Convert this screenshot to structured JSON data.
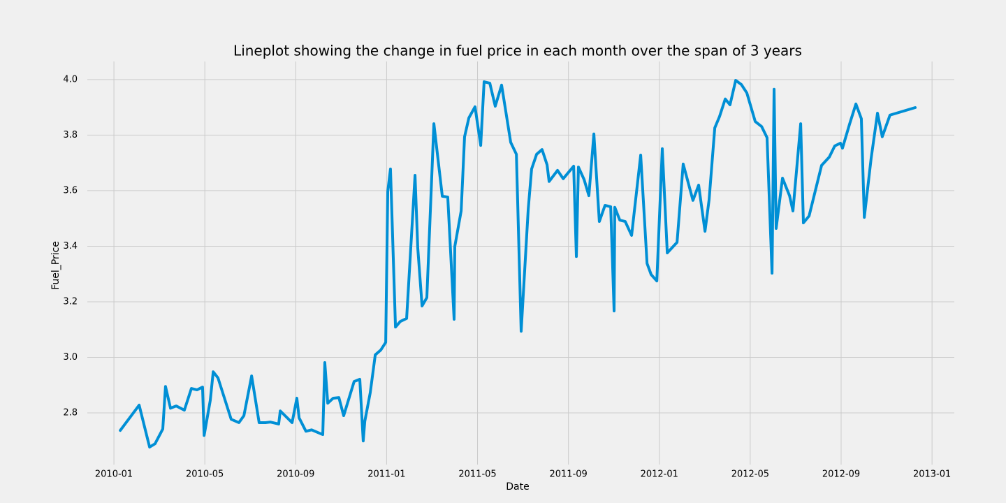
{
  "chart_data": {
    "type": "line",
    "title": "Lineplot showing the change in fuel price in each month over the span of 3 years",
    "x_label": "Date",
    "y_label": "Fuel_Price",
    "grid": true,
    "xlim": [
      -1.17,
      36.98
    ],
    "xticks": [
      {
        "value": 0,
        "label": "2010-01"
      },
      {
        "value": 4,
        "label": "2010-05"
      },
      {
        "value": 8,
        "label": "2010-09"
      },
      {
        "value": 12,
        "label": "2011-01"
      },
      {
        "value": 16,
        "label": "2011-05"
      },
      {
        "value": 20,
        "label": "2011-09"
      },
      {
        "value": 24,
        "label": "2012-01"
      },
      {
        "value": 28,
        "label": "2012-05"
      },
      {
        "value": 32,
        "label": "2012-09"
      },
      {
        "value": 36,
        "label": "2013-01"
      }
    ],
    "ylim": [
      2.614,
      4.065
    ],
    "yticks": [
      2.8,
      {
        "value": 3,
        "label": "3.0"
      },
      3.2,
      3.4,
      3.6,
      3.8,
      {
        "value": 4,
        "label": "4.0"
      }
    ],
    "x": [
      0.28,
      1.11,
      1.57,
      1.81,
      2.15,
      2.27,
      2.49,
      2.74,
      3.1,
      3.41,
      3.66,
      3.9,
      3.97,
      4.24,
      4.37,
      4.58,
      5.16,
      5.5,
      5.72,
      6.06,
      6.39,
      6.67,
      6.89,
      7.25,
      7.32,
      7.84,
      8.05,
      8.15,
      8.45,
      8.7,
      9.19,
      9.28,
      9.41,
      9.65,
      9.9,
      10.11,
      10.57,
      10.82,
      10.97,
      11.04,
      11.28,
      11.5,
      11.74,
      11.96,
      12.05,
      12.17,
      12.39,
      12.6,
      12.88,
      13.25,
      13.37,
      13.56,
      13.77,
      14.08,
      14.45,
      14.69,
      14.97,
      15.0,
      15.28,
      15.43,
      15.62,
      15.89,
      16.14,
      16.29,
      16.54,
      16.78,
      17.06,
      17.46,
      17.71,
      17.92,
      18.23,
      18.38,
      18.6,
      18.84,
      19.06,
      19.15,
      19.52,
      19.77,
      20.23,
      20.35,
      20.44,
      20.69,
      20.9,
      21.12,
      21.36,
      21.61,
      21.86,
      22.01,
      22.04,
      22.26,
      22.5,
      22.78,
      23.18,
      23.46,
      23.64,
      23.89,
      24.13,
      24.35,
      24.78,
      25.05,
      25.48,
      25.73,
      26.01,
      26.19,
      26.44,
      26.65,
      26.9,
      27.11,
      27.36,
      27.61,
      27.85,
      28.22,
      28.5,
      28.74,
      28.96,
      29.05,
      29.14,
      29.42,
      29.73,
      29.88,
      30.22,
      30.34,
      30.59,
      31.14,
      31.48,
      31.72,
      31.97,
      32.06,
      32.37,
      32.65,
      32.89,
      33.02,
      33.32,
      33.6,
      33.81,
      34.15,
      35.26
    ],
    "series": [
      {
        "color": "#008fd5",
        "values": [
          2.737,
          2.828,
          2.677,
          2.689,
          2.742,
          2.895,
          2.817,
          2.825,
          2.81,
          2.888,
          2.883,
          2.893,
          2.719,
          2.845,
          2.948,
          2.926,
          2.777,
          2.765,
          2.79,
          2.933,
          2.765,
          2.765,
          2.767,
          2.76,
          2.807,
          2.765,
          2.853,
          2.782,
          2.734,
          2.739,
          2.722,
          2.981,
          2.835,
          2.853,
          2.855,
          2.79,
          2.913,
          2.921,
          2.699,
          2.77,
          2.873,
          3.009,
          3.026,
          3.054,
          3.597,
          3.678,
          3.109,
          3.129,
          3.14,
          3.655,
          3.394,
          3.185,
          3.215,
          3.841,
          3.58,
          3.577,
          3.137,
          3.399,
          3.527,
          3.794,
          3.862,
          3.902,
          3.763,
          3.992,
          3.987,
          3.904,
          3.98,
          3.774,
          3.731,
          3.094,
          3.532,
          3.678,
          3.731,
          3.748,
          3.693,
          3.633,
          3.673,
          3.643,
          3.688,
          3.363,
          3.685,
          3.64,
          3.582,
          3.804,
          3.489,
          3.547,
          3.542,
          3.167,
          3.54,
          3.494,
          3.489,
          3.439,
          3.728,
          3.338,
          3.298,
          3.275,
          3.751,
          3.376,
          3.414,
          3.696,
          3.565,
          3.62,
          3.454,
          3.567,
          3.826,
          3.867,
          3.93,
          3.909,
          3.997,
          3.982,
          3.952,
          3.849,
          3.831,
          3.791,
          3.303,
          3.965,
          3.464,
          3.645,
          3.582,
          3.527,
          3.841,
          3.484,
          3.509,
          3.691,
          3.721,
          3.761,
          3.771,
          3.753,
          3.839,
          3.912,
          3.859,
          3.504,
          3.716,
          3.879,
          3.794,
          3.872,
          3.899
        ]
      }
    ]
  }
}
